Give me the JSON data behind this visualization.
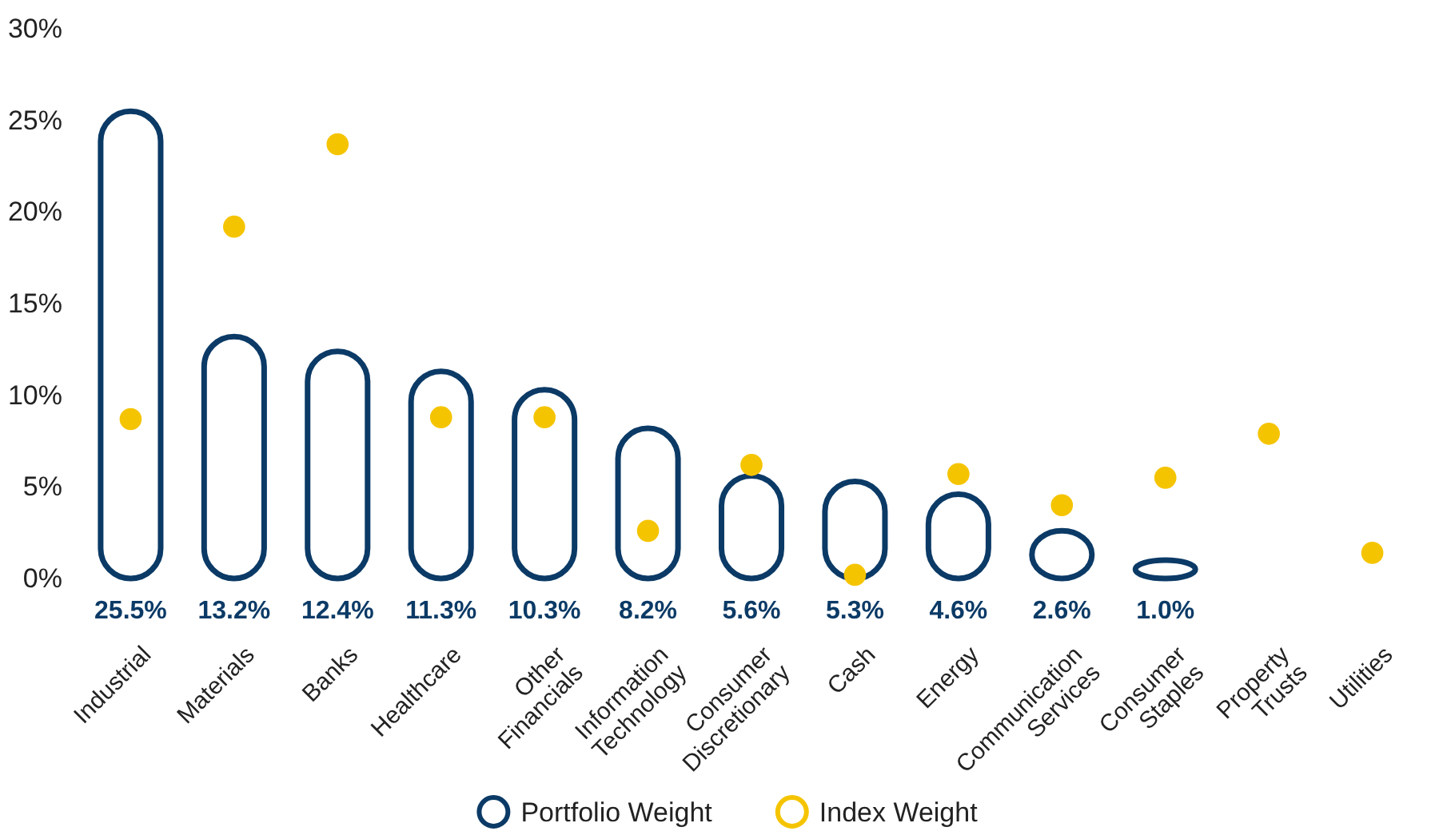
{
  "chart_data": {
    "type": "bar",
    "categories": [
      "Industrial",
      "Materials",
      "Banks",
      "Healthcare",
      "Other Financials",
      "Information Technology",
      "Consumer Discretionary",
      "Cash",
      "Energy",
      "Communication Services",
      "Consumer Staples",
      "Property Trusts",
      "Utilities"
    ],
    "series": [
      {
        "name": "Portfolio Weight",
        "color": "#0b3a66",
        "values": [
          25.5,
          13.2,
          12.4,
          11.3,
          10.3,
          8.2,
          5.6,
          5.3,
          4.6,
          2.6,
          1.0,
          null,
          null
        ],
        "value_labels": [
          "25.5%",
          "13.2%",
          "12.4%",
          "11.3%",
          "10.3%",
          "8.2%",
          "5.6%",
          "5.3%",
          "4.6%",
          "2.6%",
          "1.0%",
          null,
          null
        ]
      },
      {
        "name": "Index Weight",
        "type": "scatter",
        "color": "#f5c400",
        "marker": "circle",
        "values": [
          8.7,
          19.2,
          23.7,
          8.8,
          8.8,
          2.6,
          6.2,
          0.2,
          5.7,
          4.0,
          5.5,
          7.9,
          1.4
        ]
      }
    ],
    "ylim": [
      0,
      30
    ],
    "yticks": [
      {
        "value": 0,
        "label": "0%"
      },
      {
        "value": 5,
        "label": "5%"
      },
      {
        "value": 10,
        "label": "10%"
      },
      {
        "value": 15,
        "label": "15%"
      },
      {
        "value": 20,
        "label": "20%"
      },
      {
        "value": 25,
        "label": "25%"
      },
      {
        "value": 30,
        "label": "30%"
      }
    ],
    "grid": false,
    "legend": "bottom"
  }
}
